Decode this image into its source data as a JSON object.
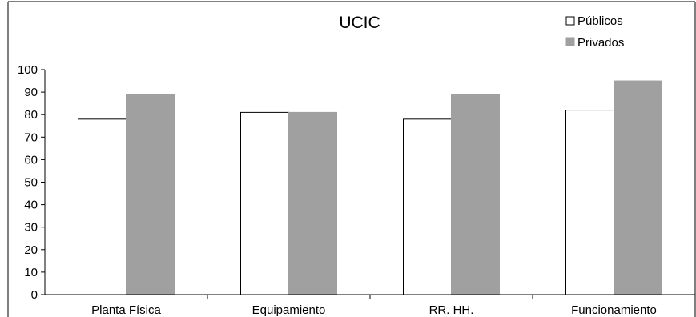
{
  "chart_data": {
    "type": "bar",
    "title": "UCIC",
    "categories": [
      "Planta Física",
      "Equipamiento",
      "RR. HH.",
      "Funcionamiento"
    ],
    "series": [
      {
        "name": "Públicos",
        "values": [
          78,
          81,
          78,
          82
        ],
        "color": "#ffffff"
      },
      {
        "name": "Privados",
        "values": [
          89,
          81,
          89,
          95
        ],
        "color": "#a0a0a0"
      }
    ],
    "xlabel": "",
    "ylabel": "",
    "ylim": [
      0,
      100
    ],
    "yticks": [
      "0",
      "10",
      "20",
      "30",
      "40",
      "50",
      "60",
      "70",
      "80",
      "90",
      "100"
    ],
    "grid": false,
    "legend_position": "top-right"
  }
}
